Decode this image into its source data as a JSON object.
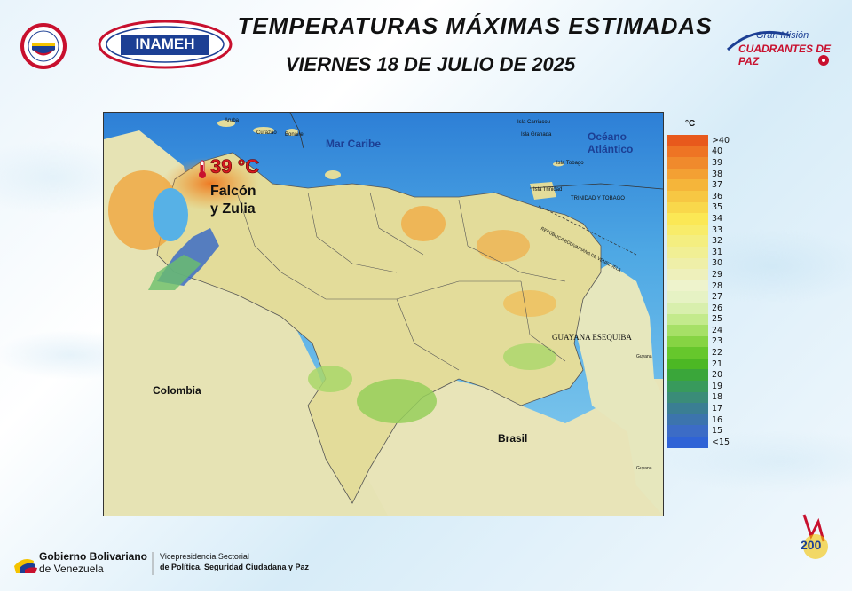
{
  "header": {
    "title": "TEMPERATURAS MÁXIMAS ESTIMADAS",
    "date": "VIERNES 18 DE JULIO DE 2025"
  },
  "logos": {
    "inameh": "INAMEH",
    "gran_mision_top": "Gran Misión",
    "gran_mision_bottom": "CUADRANTES DE PAZ",
    "bicentenario": "200"
  },
  "map": {
    "highlight_value": "39 °C",
    "highlight_region_line1": "Falcón",
    "highlight_region_line2": "y Zulia",
    "labels": {
      "mar_caribe": "Mar Caribe",
      "oceano_line1": "Océano",
      "oceano_line2": "Atlántico",
      "colombia": "Colombia",
      "brasil": "Brasil",
      "guayana": "GUAYANA ESEQUIBA",
      "trinidad": "TRINIDAD Y TOBAGO",
      "aruba": "Aruba",
      "curazao": "Curazao",
      "bonaire": "Bonaire",
      "carriacou": "Isla Carriacou",
      "granada": "Isla Granada",
      "tobago": "Isla Tobago",
      "isla_trinidad": "Isla Trinidad",
      "frontier": "REPÚBLICA BOLIVARIANA DE VENEZUELA",
      "guyana_e": "Guyana",
      "guyana_s": "Guyana"
    }
  },
  "legend": {
    "unit": "°C",
    "items": [
      {
        "label": ">40",
        "color": "#e8591c"
      },
      {
        "label": "40",
        "color": "#ee7424"
      },
      {
        "label": "39",
        "color": "#f08a2c"
      },
      {
        "label": "38",
        "color": "#f3a033"
      },
      {
        "label": "37",
        "color": "#f5b53a"
      },
      {
        "label": "36",
        "color": "#f7c743"
      },
      {
        "label": "35",
        "color": "#f9d84b"
      },
      {
        "label": "34",
        "color": "#fbe855"
      },
      {
        "label": "33",
        "color": "#f8ec6a"
      },
      {
        "label": "32",
        "color": "#f4ee80"
      },
      {
        "label": "31",
        "color": "#f1ef94"
      },
      {
        "label": "30",
        "color": "#efefa8"
      },
      {
        "label": "29",
        "color": "#eef0bb"
      },
      {
        "label": "28",
        "color": "#eef3cc"
      },
      {
        "label": "27",
        "color": "#e6f2c4"
      },
      {
        "label": "26",
        "color": "#d8efad"
      },
      {
        "label": "25",
        "color": "#c3ea8c"
      },
      {
        "label": "24",
        "color": "#a6e066"
      },
      {
        "label": "23",
        "color": "#86d443"
      },
      {
        "label": "22",
        "color": "#66c72c"
      },
      {
        "label": "21",
        "color": "#4cb824"
      },
      {
        "label": "20",
        "color": "#3aa63a"
      },
      {
        "label": "19",
        "color": "#389a5c"
      },
      {
        "label": "18",
        "color": "#3a8c78"
      },
      {
        "label": "17",
        "color": "#3a7e93"
      },
      {
        "label": "16",
        "color": "#3c74ad"
      },
      {
        "label": "15",
        "color": "#3c6cc6"
      },
      {
        "label": "<15",
        "color": "#2f63d6"
      }
    ]
  },
  "footer": {
    "gov_line1": "Gobierno Bolivariano",
    "gov_line2": "de Venezuela",
    "vice_line1": "Vicepresidencia Sectorial",
    "vice_line2": "de Política, Seguridad Ciudadana y Paz"
  }
}
